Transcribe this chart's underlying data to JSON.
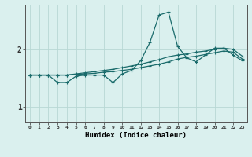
{
  "xlabel": "Humidex (Indice chaleur)",
  "bg_color": "#daf0ee",
  "line_color": "#1a6b6b",
  "grid_color": "#b8d8d4",
  "x_ticks": [
    0,
    1,
    2,
    3,
    4,
    5,
    6,
    7,
    8,
    9,
    10,
    11,
    12,
    13,
    14,
    15,
    16,
    17,
    18,
    19,
    20,
    21,
    22,
    23
  ],
  "y_ticks": [
    1,
    2
  ],
  "xlim": [
    -0.5,
    23.5
  ],
  "ylim": [
    0.72,
    2.78
  ],
  "line1_x": [
    0,
    1,
    2,
    3,
    4,
    5,
    6,
    7,
    8,
    9,
    10,
    11,
    12,
    13,
    14,
    15,
    16,
    17,
    18,
    19,
    20,
    21,
    22,
    23
  ],
  "line1_y": [
    1.55,
    1.55,
    1.55,
    1.42,
    1.42,
    1.53,
    1.55,
    1.55,
    1.55,
    1.42,
    1.57,
    1.63,
    1.8,
    2.12,
    2.6,
    2.65,
    2.05,
    1.85,
    1.78,
    1.9,
    2.02,
    2.02,
    1.9,
    1.8
  ],
  "line2_x": [
    0,
    1,
    2,
    3,
    4,
    5,
    6,
    7,
    8,
    9,
    10,
    11,
    12,
    13,
    14,
    15,
    16,
    17,
    18,
    19,
    20,
    21,
    22,
    23
  ],
  "line2_y": [
    1.55,
    1.55,
    1.55,
    1.55,
    1.55,
    1.57,
    1.59,
    1.61,
    1.63,
    1.65,
    1.68,
    1.71,
    1.74,
    1.78,
    1.82,
    1.87,
    1.9,
    1.92,
    1.95,
    1.97,
    2.0,
    2.02,
    2.0,
    1.88
  ],
  "line3_x": [
    0,
    1,
    2,
    3,
    4,
    5,
    6,
    7,
    8,
    9,
    10,
    11,
    12,
    13,
    14,
    15,
    16,
    17,
    18,
    19,
    20,
    21,
    22,
    23
  ],
  "line3_y": [
    1.55,
    1.55,
    1.55,
    1.55,
    1.55,
    1.56,
    1.57,
    1.58,
    1.6,
    1.61,
    1.63,
    1.65,
    1.68,
    1.71,
    1.74,
    1.78,
    1.83,
    1.86,
    1.88,
    1.91,
    1.94,
    1.97,
    1.95,
    1.83
  ]
}
